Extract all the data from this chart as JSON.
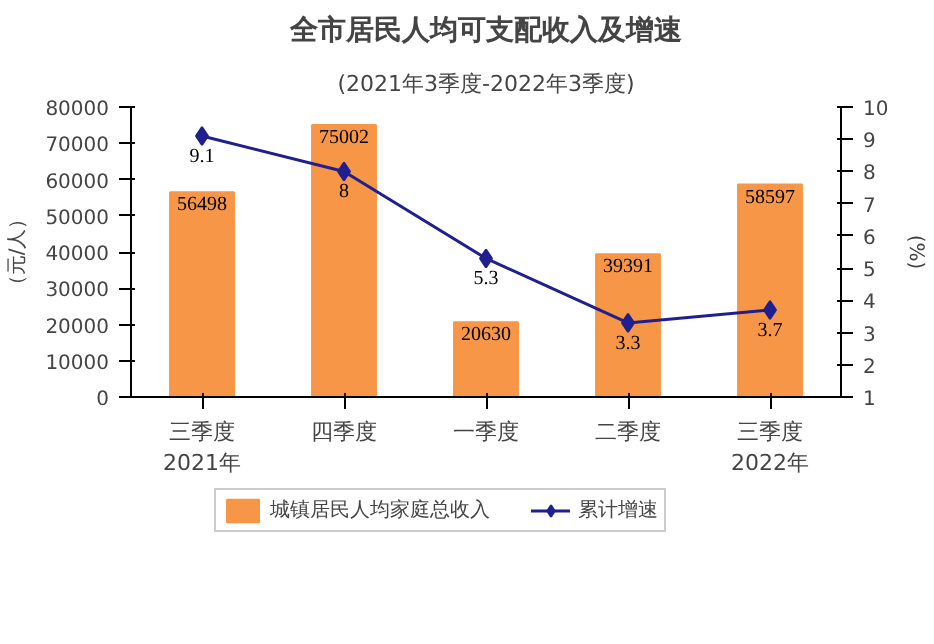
{
  "chart_data": {
    "type": "bar",
    "title": "全市居民人均可支配收入及增速",
    "subtitle": "(2021年3季度-2022年3季度)",
    "ylabel": "（元/人）",
    "y2label": "(%)",
    "categories": [
      "三季度\n2021年",
      "四季度",
      "一季度",
      "二季度",
      "三季度\n2022年"
    ],
    "series": [
      {
        "name": "城镇居民人均家庭总收入",
        "color": "#f79646",
        "values": [
          56498,
          75002,
          20630,
          39391,
          58597
        ]
      },
      {
        "name": "累计增速",
        "type": "line",
        "axis": "y2",
        "color": "#1f1f8f",
        "marker": "diamond",
        "values": [
          9.1,
          8,
          5.3,
          3.3,
          3.7
        ]
      }
    ],
    "ylim": [
      0,
      80000
    ],
    "yticks": [
      0,
      10000,
      20000,
      30000,
      40000,
      50000,
      60000,
      70000,
      80000
    ],
    "y2lim": [
      1,
      10
    ],
    "y2ticks": [
      1,
      2,
      3,
      4,
      5,
      6,
      7,
      8,
      9,
      10
    ],
    "data_labels": true,
    "grid": false,
    "legend": "bottom"
  }
}
